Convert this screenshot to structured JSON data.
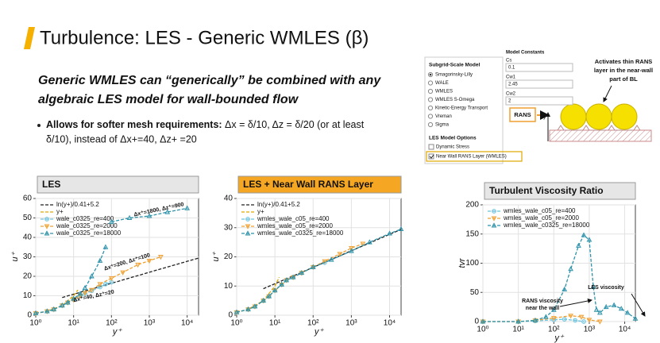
{
  "title": "Turbulence: LES - Generic WMLES (β)",
  "subtitle": [
    "Generic WMLES can “generically” be combined with any",
    "algebraic LES model for wall-bounded flow"
  ],
  "bullet": {
    "lead": "Allows for softer mesh requirements:",
    "lines": [
      " Δx = δ/10, Δz = δ/20 (or at least",
      "δ/10), instead of Δx+=40, Δz+ =20"
    ]
  },
  "panel": {
    "sgs_title": "Subgrid-Scale Model",
    "sgs_options": [
      "Smagorinsky-Lilly",
      "WALE",
      "WMLES",
      "WMLES S-Omega",
      "Kinetic-Energy Transport",
      "Vreman",
      "Sigma"
    ],
    "constants_title": "Model Constants",
    "constants": [
      {
        "name": "Cs",
        "value": 0.1
      },
      {
        "name": "Cw1",
        "value": 2.45
      },
      {
        "name": "Cw2",
        "value": 2
      }
    ],
    "options_title": "LES Model Options",
    "options": [
      "Dynamic Stress",
      "Near Wall RANS Layer (WMLES)"
    ],
    "rans_label": "RANS",
    "y_label": "y",
    "note": [
      "Activates thin RANS",
      "layer in the near-wall",
      "part of BL"
    ]
  },
  "chart_data": [
    {
      "type": "line",
      "title": "LES",
      "title_background": "#e6e6e6",
      "xlabel": "y⁺",
      "ylabel": "u⁺",
      "xscale": "log",
      "grid": true,
      "xlim": [
        1,
        20000
      ],
      "ylim": [
        0,
        60
      ],
      "xticks": [
        {
          "value": 1,
          "label": "10⁰"
        },
        {
          "value": 10,
          "label": "10¹"
        },
        {
          "value": 100,
          "label": "10²"
        },
        {
          "value": 1000,
          "label": "10³"
        },
        {
          "value": 10000,
          "label": "10⁴"
        }
      ],
      "yticks": [
        0,
        10,
        20,
        30,
        40,
        50,
        60
      ],
      "series": [
        {
          "name": "ln(y+)/0.41+5.2",
          "color": "#222222",
          "marker": "none",
          "dash": true,
          "x": [
            5,
            100,
            1000,
            20000
          ],
          "values": [
            9.1,
            16.4,
            22.1,
            29.4
          ]
        },
        {
          "name": "y+",
          "color": "#e0a800",
          "marker": "none",
          "dash": true,
          "x": [
            1,
            2,
            5,
            10,
            13
          ],
          "values": [
            1,
            2,
            5,
            10,
            13
          ]
        },
        {
          "name": "wale_c0325_re=400",
          "color": "#6cc3df",
          "marker": "circle",
          "dash": true,
          "x": [
            1,
            2,
            3,
            5,
            7,
            10,
            15,
            20,
            30,
            50,
            70,
            100
          ],
          "values": [
            1,
            2,
            3,
            5,
            6.5,
            8,
            10,
            11,
            12.5,
            14.5,
            16,
            17
          ]
        },
        {
          "name": "wale_c0325_re=2000",
          "color": "#f0a030",
          "marker": "triangle-down",
          "dash": true,
          "x": [
            1,
            2,
            3,
            5,
            7,
            10,
            15,
            20,
            30,
            50,
            100,
            200,
            500,
            1000,
            2000
          ],
          "values": [
            1,
            2,
            3,
            5,
            6.5,
            8,
            10,
            11.5,
            13,
            16,
            19,
            22,
            26,
            28,
            30
          ]
        },
        {
          "name": "wale_c0325_re=18000",
          "color": "#2f93aa",
          "marker": "triangle-up",
          "dash": true,
          "x": [
            1,
            2,
            3,
            5,
            7,
            10,
            15,
            20,
            30,
            50,
            70,
            85,
            100,
            300,
            1000,
            3000,
            10000
          ],
          "values": [
            1,
            2,
            3,
            5,
            6.5,
            8.5,
            11,
            14,
            20,
            28,
            35,
            null,
            48,
            50,
            51,
            53,
            55
          ]
        }
      ],
      "annotations": [
        "Δx⁺=1800, Δz⁺=900",
        "Δx⁺=200, Δz⁺=100",
        "Δx⁺=40, Δz⁺=20"
      ]
    },
    {
      "type": "line",
      "title": "LES + Near Wall RANS Layer",
      "title_background": "#f5a623",
      "xlabel": "y⁺",
      "ylabel": "u⁺",
      "xscale": "log",
      "grid": true,
      "xlim": [
        1,
        20000
      ],
      "ylim": [
        0,
        40
      ],
      "xticks": [
        {
          "value": 1,
          "label": "10⁰"
        },
        {
          "value": 10,
          "label": "10¹"
        },
        {
          "value": 100,
          "label": "10²"
        },
        {
          "value": 1000,
          "label": "10³"
        },
        {
          "value": 10000,
          "label": "10⁴"
        }
      ],
      "yticks": [
        0,
        10,
        20,
        30,
        40
      ],
      "series": [
        {
          "name": "ln(y+)/0.41+5.2",
          "color": "#222222",
          "marker": "none",
          "dash": true,
          "x": [
            5,
            100,
            1000,
            20000
          ],
          "values": [
            9.1,
            16.4,
            22.1,
            29.4
          ]
        },
        {
          "name": "y+",
          "color": "#e0a800",
          "marker": "none",
          "dash": true,
          "x": [
            1,
            2,
            5,
            10,
            13
          ],
          "values": [
            1,
            2,
            5,
            10,
            13
          ]
        },
        {
          "name": "wmles_wale_c05_re=400",
          "color": "#6cc3df",
          "marker": "circle",
          "dash": true,
          "x": [
            1,
            2,
            3,
            5,
            7,
            10,
            15,
            20,
            30,
            50,
            100,
            200
          ],
          "values": [
            1,
            2,
            3,
            5,
            6.5,
            8.5,
            10.5,
            12,
            13,
            14.5,
            16.5,
            18
          ]
        },
        {
          "name": "wmles_wale_c05_re=2000",
          "color": "#f0a030",
          "marker": "triangle-down",
          "dash": true,
          "x": [
            1,
            2,
            3,
            5,
            7,
            10,
            15,
            20,
            30,
            50,
            100,
            200,
            500,
            1000,
            2000
          ],
          "values": [
            1,
            2,
            3,
            5,
            6.5,
            8.5,
            10.5,
            12,
            13,
            14.5,
            16.5,
            18.5,
            21,
            23,
            24.5
          ]
        },
        {
          "name": "wmles_wale_c0325_re=18000",
          "color": "#2f93aa",
          "marker": "triangle-up",
          "dash": true,
          "x": [
            1,
            2,
            3,
            5,
            7,
            10,
            15,
            20,
            30,
            50,
            100,
            300,
            1000,
            3000,
            10000,
            20000
          ],
          "values": [
            1,
            2,
            3,
            5,
            6.5,
            8.5,
            10.5,
            12,
            13,
            14.5,
            16.5,
            19,
            22,
            25,
            28,
            29.5
          ]
        }
      ],
      "annotations": []
    },
    {
      "type": "line",
      "title": "Turbulent Viscosity Ratio",
      "title_background": "#e6e6e6",
      "xlabel": "y⁺",
      "ylabel": "tvr",
      "xscale": "log",
      "grid": true,
      "xlim": [
        1,
        20000
      ],
      "ylim": [
        0,
        200
      ],
      "xticks": [
        {
          "value": 1,
          "label": "10⁰"
        },
        {
          "value": 10,
          "label": "10¹"
        },
        {
          "value": 100,
          "label": "10²"
        },
        {
          "value": 1000,
          "label": "10³"
        },
        {
          "value": 10000,
          "label": "10⁴"
        }
      ],
      "yticks": [
        0,
        50,
        100,
        150,
        200
      ],
      "series": [
        {
          "name": "wmles_wale_c05_re=400",
          "color": "#6cc3df",
          "marker": "circle",
          "dash": true,
          "x": [
            1,
            10,
            30,
            100,
            200,
            400,
            700
          ],
          "values": [
            0,
            0,
            1,
            3,
            4,
            2,
            0
          ]
        },
        {
          "name": "wmles_wale_c05_re=2000",
          "color": "#f0a030",
          "marker": "triangle-down",
          "dash": true,
          "x": [
            1,
            10,
            30,
            100,
            300,
            600,
            1000,
            2000
          ],
          "values": [
            0,
            0,
            2,
            6,
            10,
            8,
            3,
            0
          ]
        },
        {
          "name": "wmles_wale_c0325_re=18000",
          "color": "#2f93aa",
          "marker": "triangle-up",
          "dash": true,
          "x": [
            1,
            10,
            30,
            60,
            100,
            200,
            300,
            500,
            700,
            1000,
            1300,
            1600,
            2000,
            3000,
            5000,
            8000,
            12000,
            20000
          ],
          "values": [
            0,
            0,
            2,
            8,
            20,
            55,
            90,
            130,
            148,
            140,
            60,
            20,
            15,
            25,
            28,
            22,
            15,
            5
          ]
        }
      ],
      "annotations": [
        "RANS viscosity",
        "near the wall",
        "LES viscosity"
      ]
    }
  ]
}
